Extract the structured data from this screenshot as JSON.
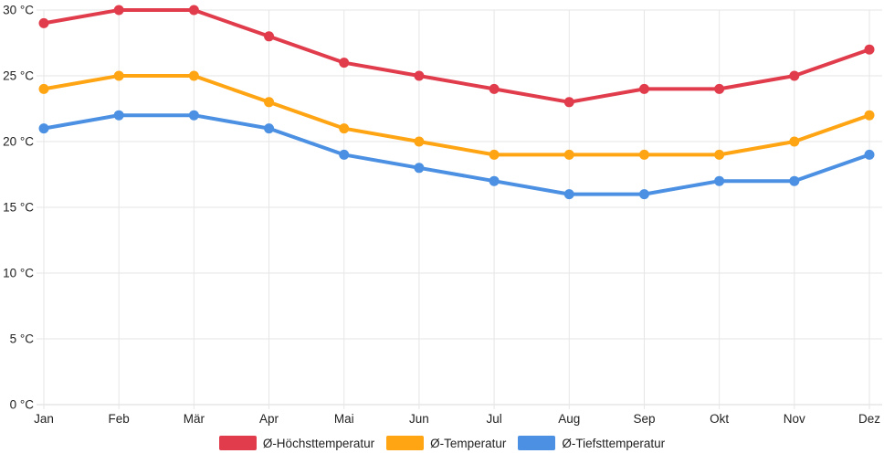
{
  "chart_data": {
    "type": "line",
    "title": "",
    "xlabel": "",
    "ylabel": "",
    "categories": [
      "Jan",
      "Feb",
      "Mär",
      "Apr",
      "Mai",
      "Jun",
      "Jul",
      "Aug",
      "Sep",
      "Okt",
      "Nov",
      "Dez"
    ],
    "series": [
      {
        "name": "Ø-Höchsttemperatur",
        "color": "#e13c4c",
        "values": [
          29,
          30,
          30,
          28,
          26,
          25,
          24,
          23,
          24,
          24,
          25,
          27
        ]
      },
      {
        "name": "Ø-Temperatur",
        "color": "#ffa412",
        "values": [
          24,
          25,
          25,
          23,
          21,
          20,
          19,
          19,
          19,
          19,
          20,
          22
        ]
      },
      {
        "name": "Ø-Tiefsttemperatur",
        "color": "#4b90e2",
        "values": [
          21,
          22,
          22,
          21,
          19,
          18,
          17,
          16,
          16,
          17,
          17,
          19
        ]
      }
    ],
    "ylim": [
      0,
      30
    ],
    "ytick_step": 5,
    "ytick_labels": [
      "0 °C",
      "5 °C",
      "10 °C",
      "15 °C",
      "20 °C",
      "25 °C",
      "30 °C"
    ],
    "y_unit": "°C",
    "grid": true,
    "legend_position": "bottom"
  },
  "colors": {
    "background": "#ffffff",
    "gridline": "#e6e6e6",
    "axisline": "#d9d9d9",
    "text": "#222222"
  }
}
